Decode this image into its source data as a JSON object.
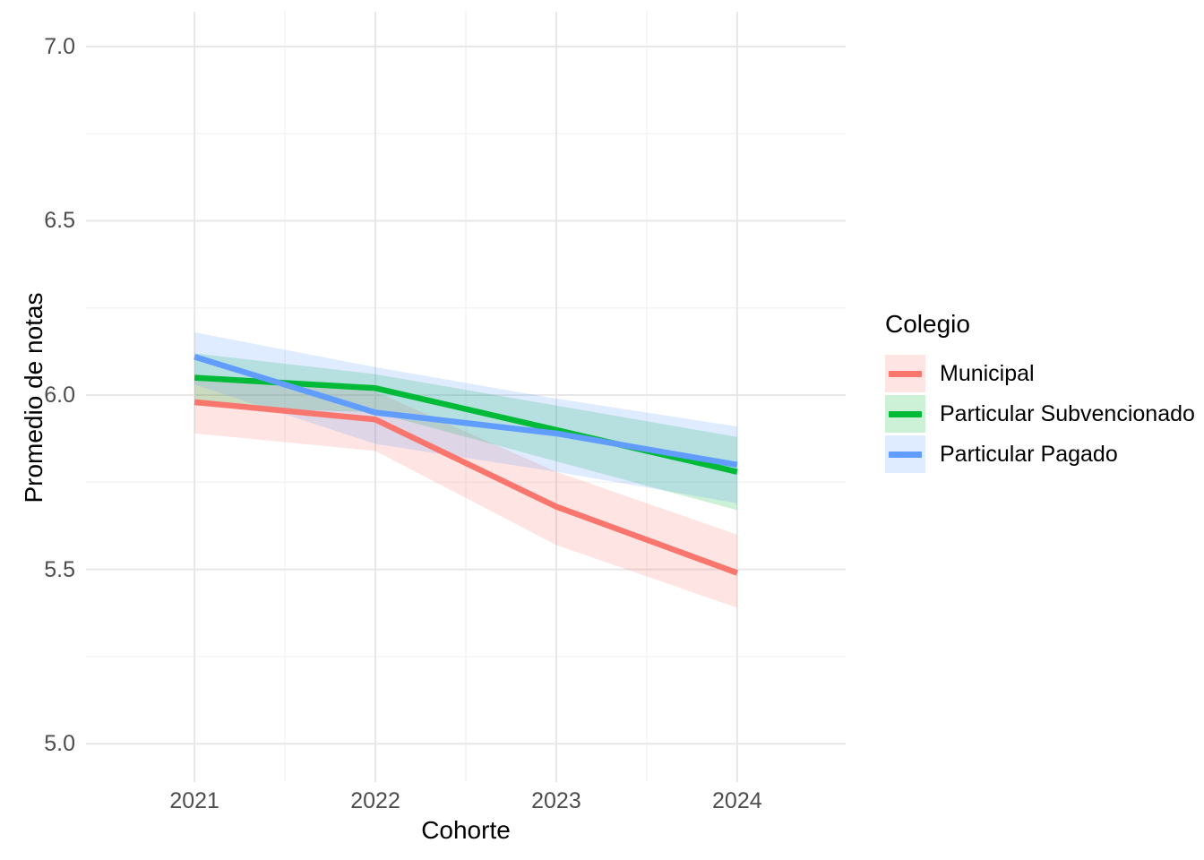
{
  "figure": {
    "background": "#FFFFFF"
  },
  "style": {
    "grid_major_color": "#E7E7E7",
    "grid_minor_color": "#F3F3F3",
    "grid_major_width": 2,
    "grid_minor_width": 1.4,
    "tick_label_color": "#4D4D4D",
    "axis_title_color": "#000000",
    "line_width": 6.5,
    "ribbon_opacity": 0.2
  },
  "axes": {
    "x": {
      "title": "Cohorte",
      "ticks": [
        {
          "value": 2021,
          "label": "2021"
        },
        {
          "value": 2022,
          "label": "2022"
        },
        {
          "value": 2023,
          "label": "2023"
        },
        {
          "value": 2024,
          "label": "2024"
        }
      ],
      "minor_ticks": [
        2021.5,
        2022.5,
        2023.5
      ]
    },
    "y": {
      "title": "Promedio de notas",
      "ticks": [
        {
          "value": 5.0,
          "label": "5.0"
        },
        {
          "value": 5.5,
          "label": "5.5"
        },
        {
          "value": 6.0,
          "label": "6.0"
        },
        {
          "value": 6.5,
          "label": "6.5"
        },
        {
          "value": 7.0,
          "label": "7.0"
        }
      ],
      "minor_ticks": [
        5.25,
        5.75,
        6.25,
        6.75
      ]
    }
  },
  "legend": {
    "title": "Colegio"
  },
  "chart_data": {
    "type": "line",
    "title": "",
    "xlabel": "Cohorte",
    "ylabel": "Promedio de notas",
    "legend_title": "Colegio",
    "legend_position": "right",
    "grid": true,
    "x": [
      2021,
      2022,
      2023,
      2024
    ],
    "xlim": [
      2020.4,
      2024.6
    ],
    "ylim": [
      4.89,
      7.1
    ],
    "series": [
      {
        "name": "Municipal",
        "color": "#F8766D",
        "values": [
          5.98,
          5.93,
          5.68,
          5.49
        ],
        "ci_lower": [
          5.89,
          5.84,
          5.57,
          5.39
        ],
        "ci_upper": [
          6.06,
          6.01,
          5.78,
          5.6
        ]
      },
      {
        "name": "Particular Subvencionado",
        "color": "#00BA38",
        "values": [
          6.05,
          6.02,
          5.9,
          5.78
        ],
        "ci_lower": [
          5.97,
          5.95,
          5.81,
          5.67
        ],
        "ci_upper": [
          6.12,
          6.06,
          5.97,
          5.88
        ]
      },
      {
        "name": "Particular Pagado",
        "color": "#619CFF",
        "values": [
          6.11,
          5.95,
          5.89,
          5.8
        ],
        "ci_lower": [
          6.03,
          5.86,
          5.78,
          5.69
        ],
        "ci_upper": [
          6.18,
          6.08,
          5.99,
          5.91
        ]
      }
    ]
  }
}
